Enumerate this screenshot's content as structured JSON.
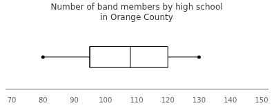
{
  "chart_data": {
    "type": "box",
    "title": "Number of band members by high school",
    "subtitle": "in Orange County",
    "min": 80,
    "q1": 95,
    "median": 108,
    "q3": 120,
    "max": 130,
    "xlim": [
      68,
      152
    ],
    "xticks": [
      70,
      80,
      90,
      100,
      110,
      120,
      130,
      140,
      150
    ],
    "color": "black",
    "grid": false,
    "tick_labels": "x"
  }
}
